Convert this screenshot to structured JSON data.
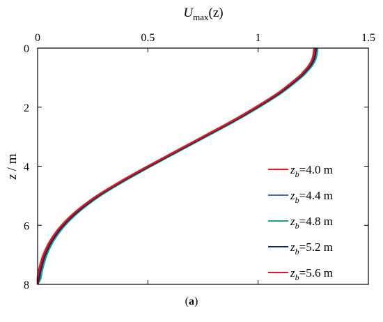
{
  "panel_label": {
    "open": "(",
    "letter": "a",
    "close": ")"
  },
  "chart_data": {
    "type": "line",
    "title": "",
    "xlabel": {
      "main": "U",
      "sub": "max",
      "tail": "(z)"
    },
    "ylabel": {
      "main": "z",
      "tail": " / m"
    },
    "x_axis_position": "top",
    "y_inverted": true,
    "xlim": [
      0,
      1.5
    ],
    "ylim": [
      0,
      8
    ],
    "xticks": [
      0,
      0.5,
      1,
      1.5
    ],
    "xtick_labels": [
      "0",
      "0.5",
      "1",
      "1.5"
    ],
    "yticks": [
      0,
      2,
      4,
      6,
      8
    ],
    "ytick_labels": [
      "0",
      "2",
      "4",
      "6",
      "8"
    ],
    "grid": false,
    "legend_position": "bottom-right",
    "z": [
      0,
      0.2,
      0.4,
      0.6,
      0.8,
      1.0,
      1.5,
      2.0,
      2.5,
      3.0,
      3.5,
      4.0,
      4.5,
      5.0,
      5.5,
      6.0,
      6.5,
      7.0,
      7.5,
      7.8,
      8.0
    ],
    "series": [
      {
        "name": {
          "var": "z",
          "sub": "b",
          "rest": "=4.0 m"
        },
        "color": "#e8141b",
        "width": 2.4,
        "dx": 0,
        "values": [
          1.26,
          1.257,
          1.25,
          1.235,
          1.212,
          1.185,
          1.1,
          0.995,
          0.88,
          0.755,
          0.63,
          0.505,
          0.385,
          0.275,
          0.185,
          0.115,
          0.065,
          0.032,
          0.012,
          0.004,
          0.0
        ]
      },
      {
        "name": {
          "var": "z",
          "sub": "b",
          "rest": "=4.4 m"
        },
        "color": "#3b6bb5",
        "width": 2.4,
        "dx": 0.006,
        "values": [
          1.26,
          1.257,
          1.25,
          1.235,
          1.212,
          1.185,
          1.1,
          0.995,
          0.88,
          0.755,
          0.63,
          0.505,
          0.385,
          0.275,
          0.185,
          0.115,
          0.065,
          0.032,
          0.012,
          0.004,
          0.0
        ]
      },
      {
        "name": {
          "var": "z",
          "sub": "b",
          "rest": "=4.8 m"
        },
        "color": "#1f9f72",
        "width": 2.2,
        "dx": 0.01,
        "values": [
          1.26,
          1.257,
          1.25,
          1.235,
          1.212,
          1.185,
          1.1,
          0.995,
          0.88,
          0.755,
          0.63,
          0.505,
          0.385,
          0.275,
          0.185,
          0.115,
          0.065,
          0.032,
          0.012,
          0.004,
          0.0
        ]
      },
      {
        "name": {
          "var": "z",
          "sub": "b",
          "rest": "=5.2 m"
        },
        "color": "#14236e",
        "width": 2.2,
        "dx": 0.003,
        "values": [
          1.26,
          1.257,
          1.25,
          1.235,
          1.212,
          1.185,
          1.1,
          0.995,
          0.88,
          0.755,
          0.63,
          0.505,
          0.385,
          0.275,
          0.185,
          0.115,
          0.065,
          0.032,
          0.012,
          0.004,
          0.0
        ]
      },
      {
        "name": {
          "var": "z",
          "sub": "b",
          "rest": "=5.6 m"
        },
        "color": "#e8141b",
        "width": 2.6,
        "dx": -0.006,
        "values": [
          1.26,
          1.257,
          1.25,
          1.235,
          1.212,
          1.185,
          1.1,
          0.995,
          0.88,
          0.755,
          0.63,
          0.505,
          0.385,
          0.275,
          0.185,
          0.115,
          0.065,
          0.032,
          0.012,
          0.004,
          0.0
        ]
      }
    ]
  }
}
